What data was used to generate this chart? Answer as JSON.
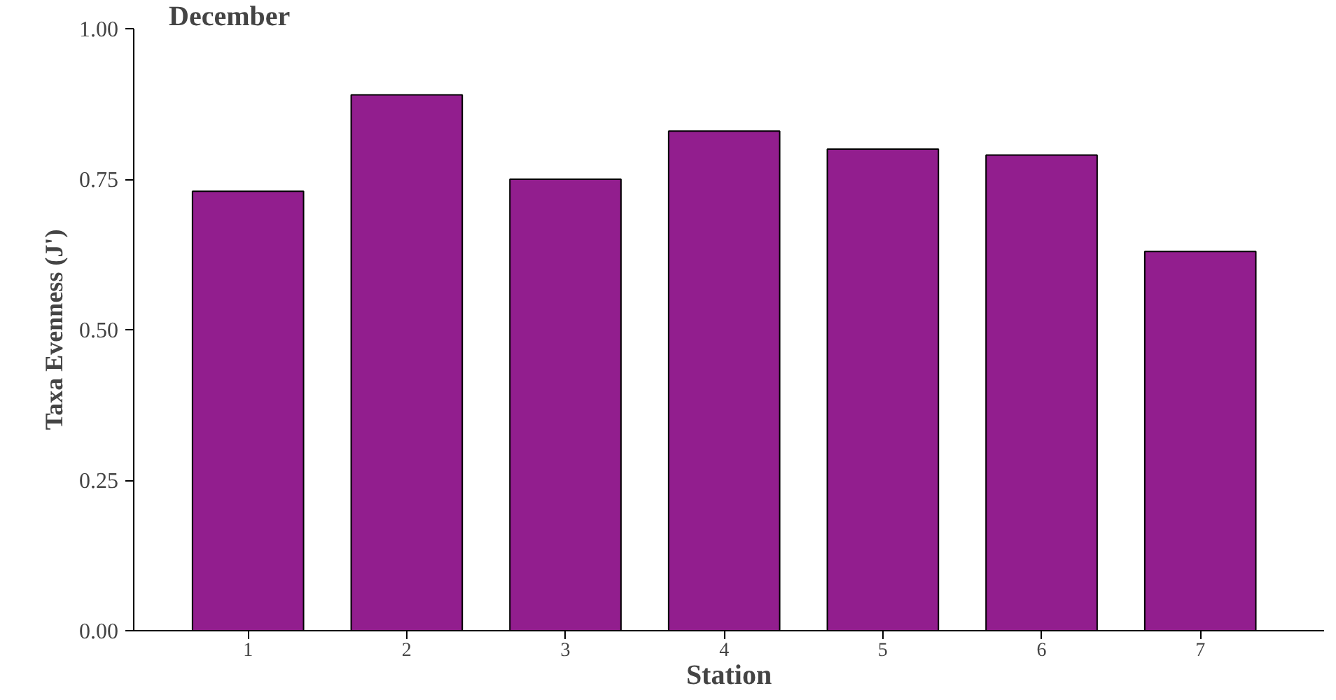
{
  "chart_data": {
    "type": "bar",
    "title": "December",
    "xlabel": "Station",
    "ylabel": "Taxa Evenness (J')",
    "categories": [
      "1",
      "2",
      "3",
      "4",
      "5",
      "6",
      "7"
    ],
    "values": [
      0.73,
      0.89,
      0.75,
      0.83,
      0.8,
      0.79,
      0.63
    ],
    "color": "#921e8e",
    "ylim": [
      0,
      1
    ],
    "yticks": [
      {
        "value": 0,
        "label": "0.00"
      },
      {
        "value": 0.25,
        "label": "0.25"
      },
      {
        "value": 0.5,
        "label": "0.50"
      },
      {
        "value": 0.75,
        "label": "0.75"
      },
      {
        "value": 1,
        "label": "1.00"
      }
    ],
    "grid": false
  }
}
